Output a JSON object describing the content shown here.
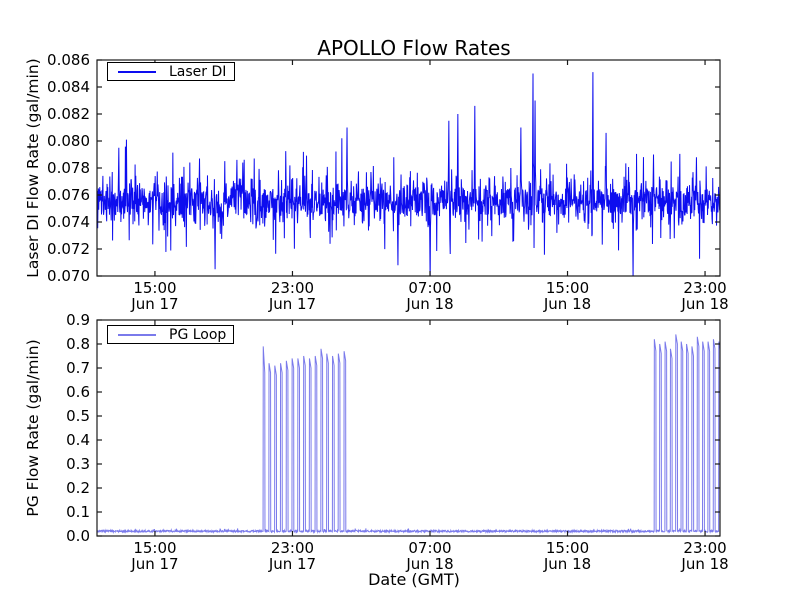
{
  "figure": {
    "background": "#ffffff",
    "frame_color": "#1a1a1a",
    "tick_length": 5
  },
  "chart_data": {
    "type": "line",
    "title": "APOLLO Flow Rates",
    "xlabel": "Date (GMT)",
    "legend_position": "upper left",
    "grid": false,
    "x_axis": {
      "unit": "hours from Jun 17 00:00 GMT",
      "start_hours": 11.63,
      "end_hours": 47.87,
      "ticks": [
        {
          "hours": 15,
          "time": "15:00",
          "date": "Jun 17"
        },
        {
          "hours": 23,
          "time": "23:00",
          "date": "Jun 17"
        },
        {
          "hours": 31,
          "time": "07:00",
          "date": "Jun 18"
        },
        {
          "hours": 39,
          "time": "15:00",
          "date": "Jun 18"
        },
        {
          "hours": 47,
          "time": "23:00",
          "date": "Jun 18"
        }
      ]
    },
    "charts": [
      {
        "name": "laser_di",
        "legend": "Laser DI",
        "ylabel": "Laser DI Flow Rate (gal/min)",
        "ylim": [
          0.07,
          0.086
        ],
        "ytick_step": 0.002,
        "ytick_labels": [
          "0.070",
          "0.072",
          "0.074",
          "0.076",
          "0.078",
          "0.080",
          "0.082",
          "0.084",
          "0.086"
        ],
        "line_color": "#0000ee",
        "line_alpha": 0.95,
        "baseline_mean": 0.0755,
        "noise_core_band": 0.001,
        "noise_wide_band": 0.003,
        "notable_peaks": [
          {
            "t": 12.9,
            "v": 0.0795
          },
          {
            "t": 13.35,
            "v": 0.0801
          },
          {
            "t": 17.6,
            "v": 0.0787
          },
          {
            "t": 19.77,
            "v": 0.0786
          },
          {
            "t": 26.17,
            "v": 0.081
          },
          {
            "t": 32.1,
            "v": 0.0815
          },
          {
            "t": 32.63,
            "v": 0.082
          },
          {
            "t": 33.61,
            "v": 0.0826
          },
          {
            "t": 36.29,
            "v": 0.081
          },
          {
            "t": 36.99,
            "v": 0.085
          },
          {
            "t": 37.12,
            "v": 0.083
          },
          {
            "t": 40.48,
            "v": 0.0851
          },
          {
            "t": 41.24,
            "v": 0.0806
          },
          {
            "t": 44.0,
            "v": 0.079
          },
          {
            "t": 46.5,
            "v": 0.0788
          }
        ],
        "notable_dips": [
          {
            "t": 18.49,
            "v": 0.0705
          },
          {
            "t": 29.13,
            "v": 0.0708
          },
          {
            "t": 31.0,
            "v": 0.0694
          },
          {
            "t": 42.81,
            "v": 0.0698
          }
        ]
      },
      {
        "name": "pg_loop",
        "legend": "PG Loop",
        "ylabel": "PG Flow Rate (gal/min)",
        "ylim": [
          0.0,
          0.9
        ],
        "ytick_step": 0.1,
        "ytick_labels": [
          "0.0",
          "0.1",
          "0.2",
          "0.3",
          "0.4",
          "0.5",
          "0.6",
          "0.7",
          "0.8",
          "0.9"
        ],
        "line_color": "#2222dd",
        "line_alpha": 0.6,
        "baseline_mean": 0.02,
        "noise_core_band": 0.004,
        "spike_clusters": [
          {
            "start_hours": 21.3,
            "spacing_hours": 0.336,
            "peaks": [
              0.79,
              0.72,
              0.71,
              0.72,
              0.73,
              0.74,
              0.74,
              0.75,
              0.74,
              0.75,
              0.78,
              0.76,
              0.75,
              0.76,
              0.77
            ],
            "first_spike_droop": 0.11,
            "droop": 0.04
          },
          {
            "start_hours": 44.05,
            "spacing_hours": 0.3125,
            "peaks": [
              0.82,
              0.8,
              0.81,
              0.78,
              0.84,
              0.81,
              0.8,
              0.79,
              0.83,
              0.81,
              0.81,
              0.82,
              0.81
            ],
            "first_spike_droop": 0.05,
            "droop": 0.04
          }
        ]
      }
    ]
  }
}
